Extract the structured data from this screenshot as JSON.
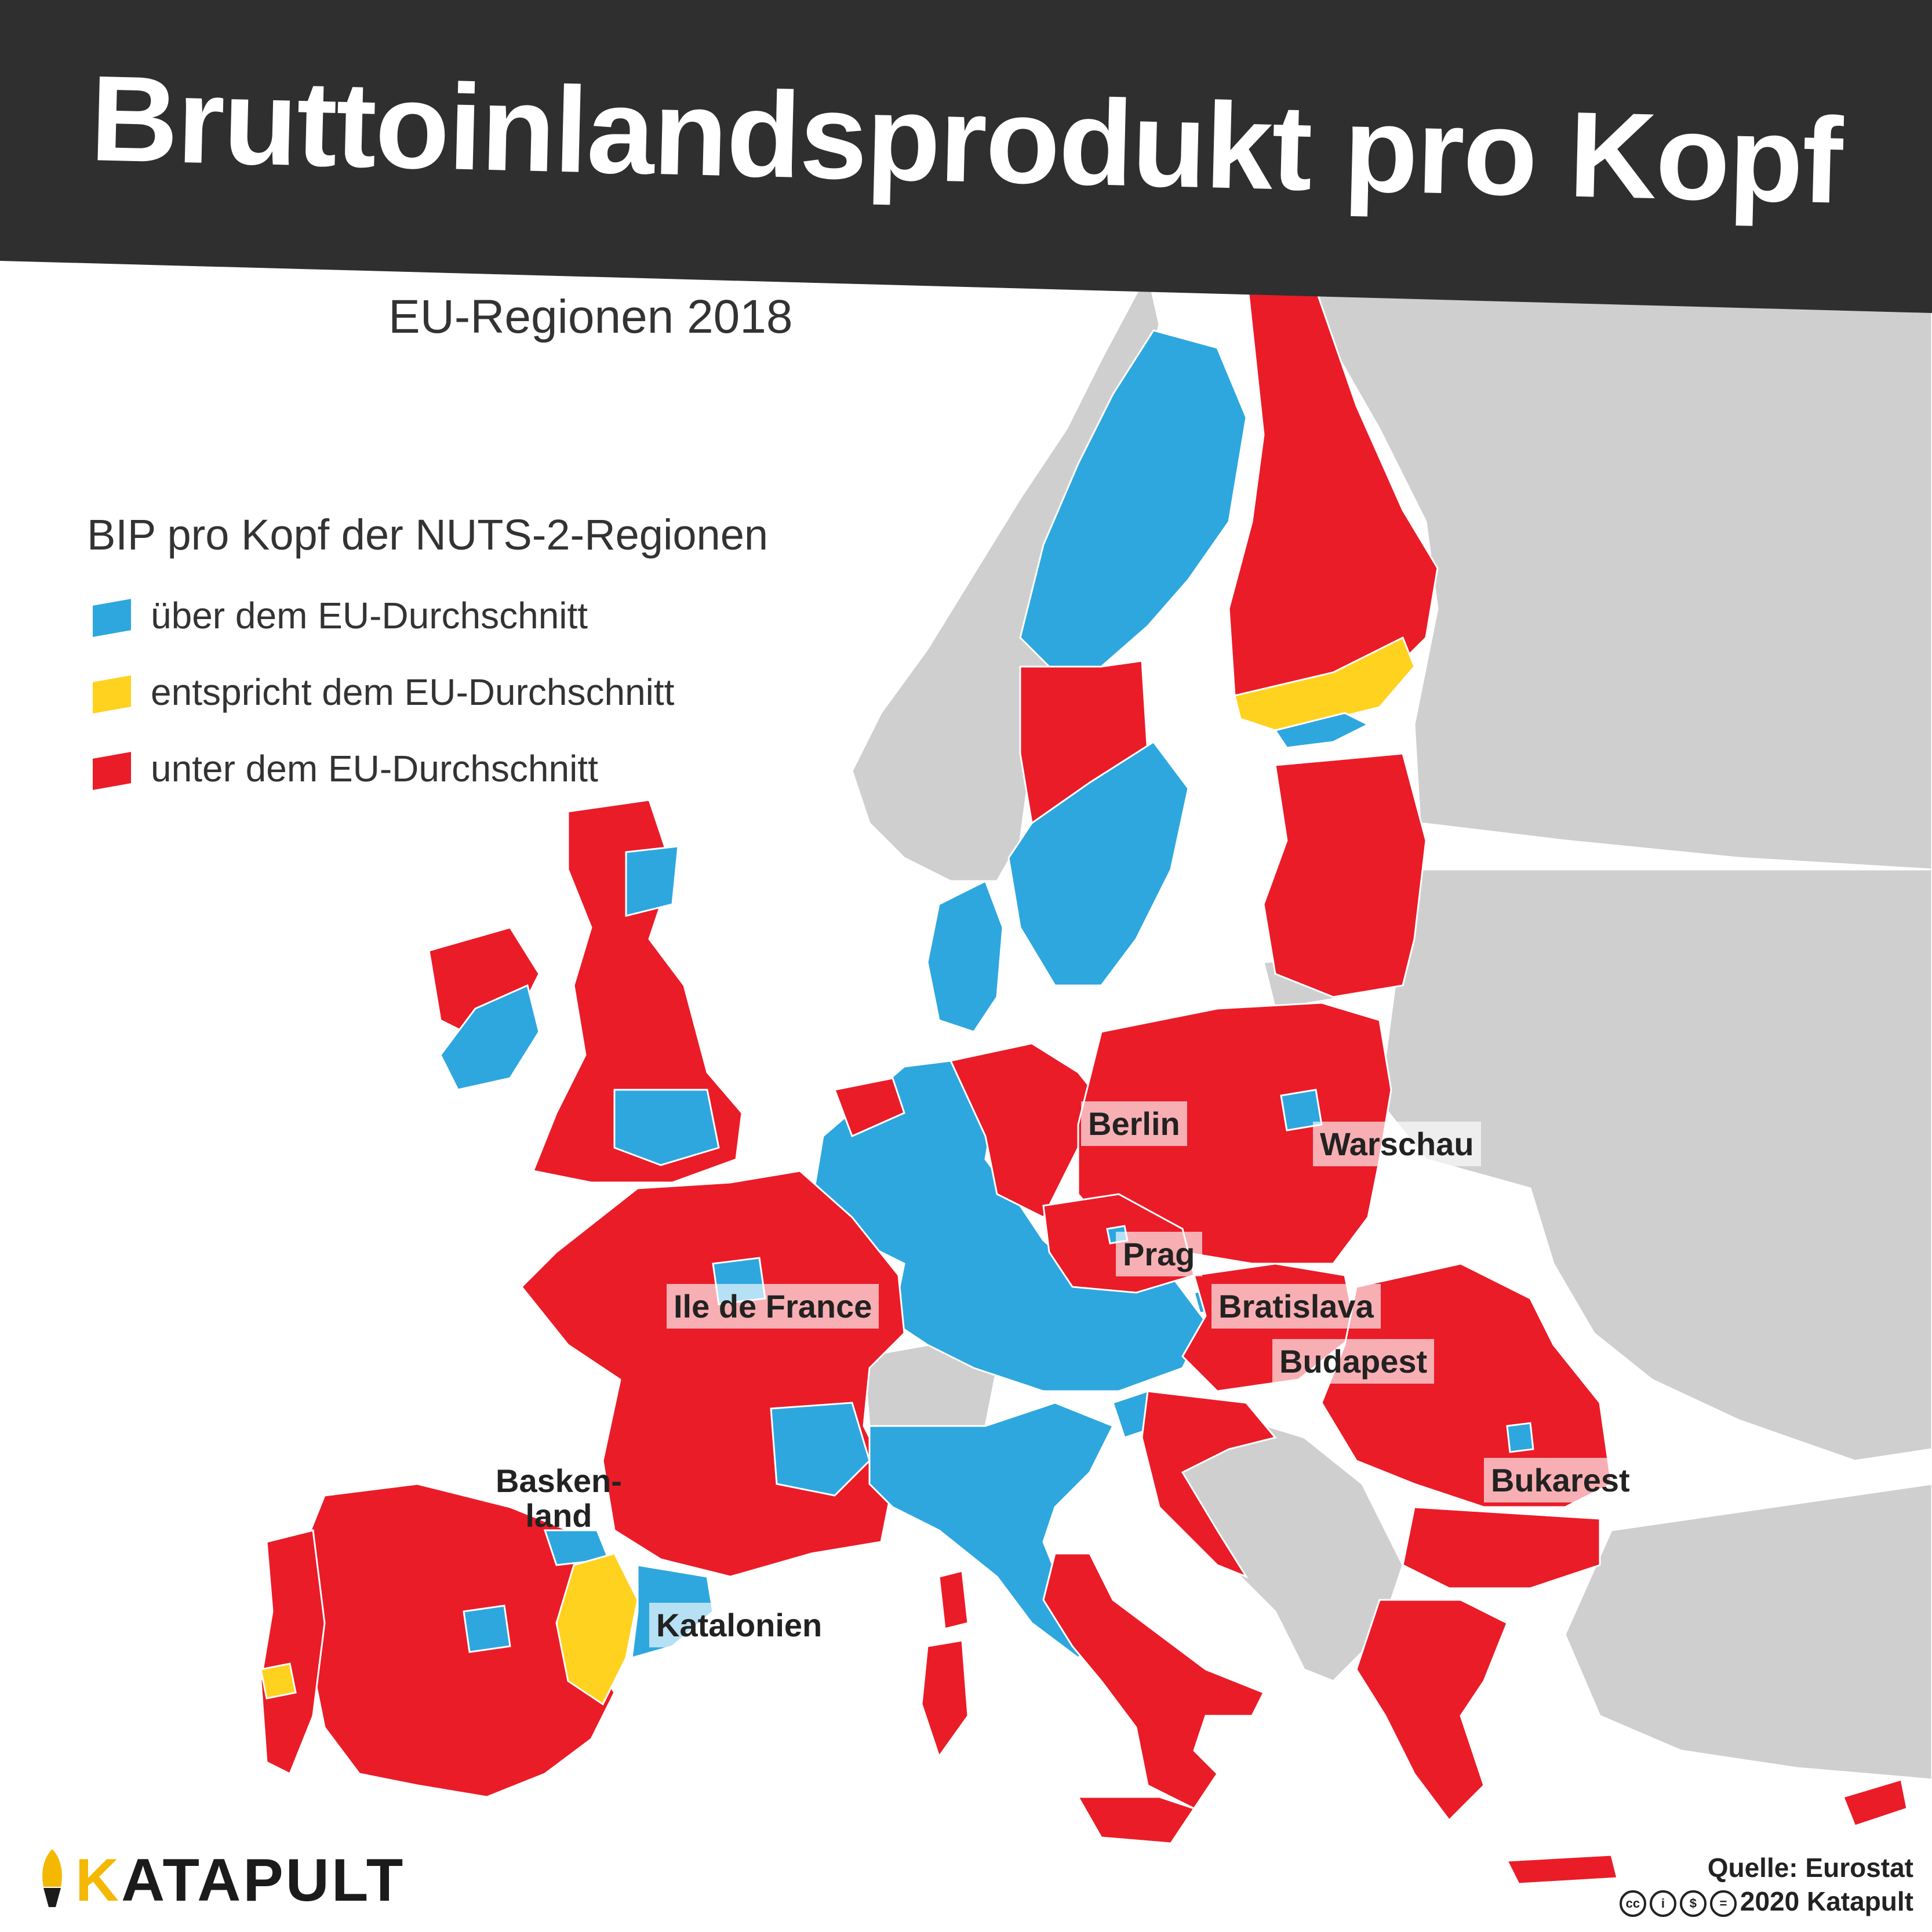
{
  "header": {
    "title": "Bruttoinlandsprodukt pro Kopf",
    "subtitle": "EU-Regionen 2018"
  },
  "legend": {
    "title": "BIP pro Kopf der NUTS-2-Regionen",
    "items": [
      {
        "label": "über dem EU-Durchschnitt",
        "color": "#2ea7de"
      },
      {
        "label": "entspricht dem EU-Durchschnitt",
        "color": "#ffd21f"
      },
      {
        "label": "unter dem EU-Durchschnitt",
        "color": "#ea1c28"
      }
    ]
  },
  "colors": {
    "banner": "#2f2f2f",
    "above": "#2ea7de",
    "average": "#ffd21f",
    "below": "#ea1c28",
    "non_eu": "#cfcfcf",
    "sea": "#ffffff",
    "border": "#ffffff"
  },
  "labels": {
    "berlin": "Berlin",
    "warschau": "Warschau",
    "prag": "Prag",
    "ile_de_france": "Ile de France",
    "bratislava": "Bratislava",
    "budapest": "Budapest",
    "bukarest": "Bukarest",
    "baskenland": "Basken-\nland",
    "katalonien": "Katalonien"
  },
  "brand": {
    "name_first": "K",
    "name_rest": "ATAPULT"
  },
  "source": {
    "text": "Quelle: Eurostat",
    "license": "2020 Katapult",
    "license_icons": [
      "cc-icon",
      "by-icon",
      "nc-icon",
      "nd-icon"
    ]
  }
}
